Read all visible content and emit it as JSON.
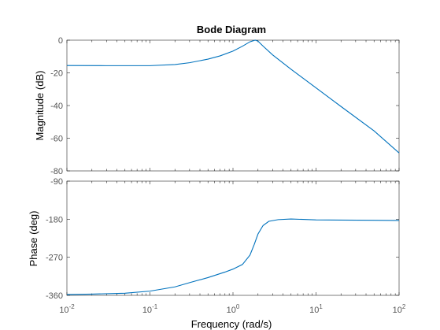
{
  "chart_data": {
    "type": "line",
    "title": "Bode Diagram",
    "xlabel": "Frequency  (rad/s)",
    "xscale": "log",
    "xlim": [
      0.01,
      100
    ],
    "x_tick_labels": [
      {
        "base": "10",
        "exp": "-2",
        "value": 0.01
      },
      {
        "base": "10",
        "exp": "-1",
        "value": 0.1
      },
      {
        "base": "10",
        "exp": "0",
        "value": 1
      },
      {
        "base": "10",
        "exp": "1",
        "value": 10
      },
      {
        "base": "10",
        "exp": "2",
        "value": 100
      }
    ],
    "line_color": "#0072BD",
    "grid": false,
    "subplots": [
      {
        "name": "magnitude",
        "ylabel": "Magnitude (dB)",
        "ylim": [
          -80,
          0
        ],
        "yticks": [
          0,
          -20,
          -40,
          -60,
          -80
        ],
        "x": [
          0.01,
          0.03,
          0.1,
          0.2,
          0.3,
          0.5,
          0.7,
          1.0,
          1.3,
          1.6,
          1.85,
          2.0,
          2.3,
          3.0,
          5.0,
          10,
          20,
          50,
          100
        ],
        "y": [
          -15.5,
          -15.6,
          -15.6,
          -14.9,
          -13.8,
          -11.6,
          -9.6,
          -6.7,
          -3.7,
          -1.0,
          0.0,
          -0.6,
          -3.6,
          -9.0,
          -17.8,
          -29.2,
          -40.6,
          -55.5,
          -69
        ]
      },
      {
        "name": "phase",
        "ylabel": "Phase (deg)",
        "ylim": [
          -360,
          -90
        ],
        "yticks": [
          -90,
          -180,
          -270,
          -360
        ],
        "x": [
          0.01,
          0.02,
          0.05,
          0.1,
          0.2,
          0.3,
          0.5,
          0.8,
          1.0,
          1.3,
          1.6,
          1.8,
          2.0,
          2.3,
          2.7,
          3.5,
          5.0,
          7.0,
          10,
          20,
          50,
          100
        ],
        "y": [
          -358,
          -357,
          -355,
          -350,
          -340,
          -330,
          -318,
          -305,
          -298,
          -287,
          -265,
          -240,
          -215,
          -195,
          -185,
          -181,
          -179.5,
          -180.5,
          -181.5,
          -182,
          -182.5,
          -183
        ]
      }
    ]
  }
}
